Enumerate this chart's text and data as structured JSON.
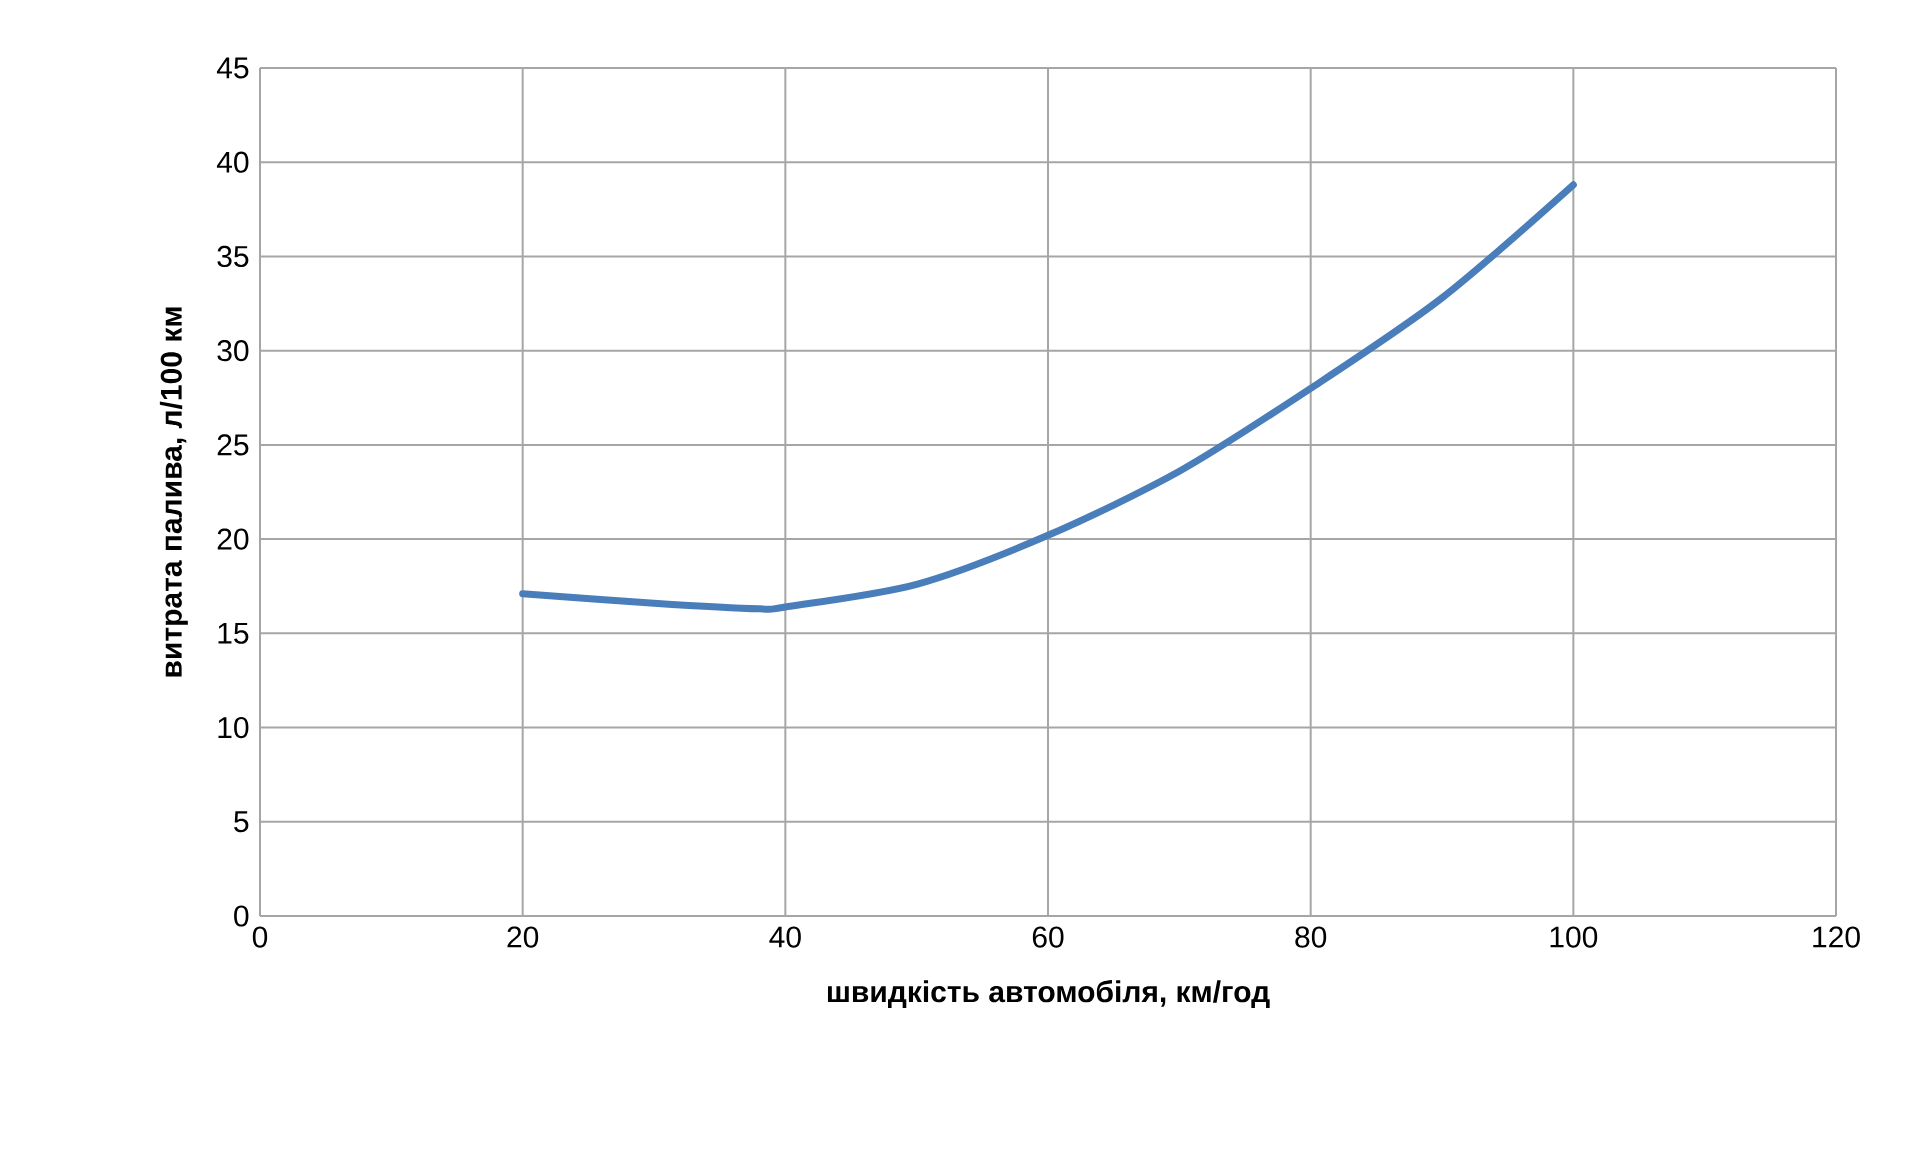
{
  "chart_data": {
    "type": "line",
    "xlabel": "швидкість автомобіля,  км/год",
    "ylabel": "витрата палива, л/100 км",
    "xlim": [
      0,
      120
    ],
    "xticks": [
      0,
      20,
      40,
      60,
      80,
      100,
      120
    ],
    "ylim": [
      0,
      45
    ],
    "yticks": [
      0,
      5,
      10,
      15,
      20,
      25,
      30,
      35,
      40,
      45
    ],
    "grid": true,
    "marker": "none",
    "line_style": "solid",
    "series": [
      {
        "color": "#4a7ebb",
        "x": [
          20,
          30,
          38,
          40,
          50,
          60,
          70,
          80,
          90,
          100
        ],
        "values": [
          17.1,
          16.6,
          16.3,
          16.4,
          17.6,
          20.2,
          23.6,
          28.0,
          32.8,
          38.8
        ]
      }
    ]
  }
}
